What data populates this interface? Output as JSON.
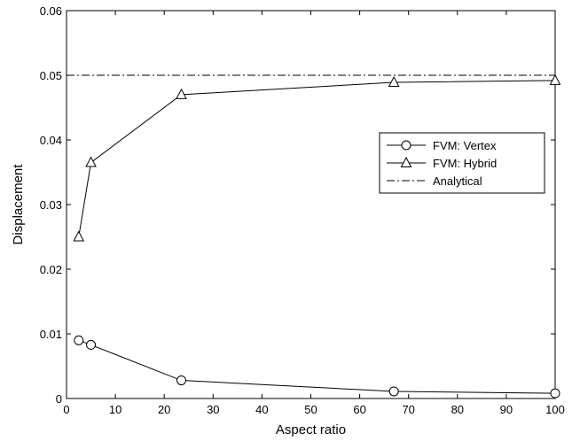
{
  "chart_data": {
    "type": "line",
    "xlabel": "Aspect ratio",
    "ylabel": "Displacement",
    "xlim": [
      0,
      100
    ],
    "ylim": [
      0,
      0.06
    ],
    "xticks": [
      "0",
      "10",
      "20",
      "30",
      "40",
      "50",
      "60",
      "70",
      "80",
      "90",
      "100"
    ],
    "yticks": [
      "0",
      "0.01",
      "0.02",
      "0.03",
      "0.04",
      "0.05",
      "0.06"
    ],
    "grid": false,
    "legend_position": "right-middle",
    "series": [
      {
        "name": "FVM: Vertex",
        "marker": "circle",
        "line": "solid",
        "color": "#000000",
        "x": [
          2.5,
          5,
          23.5,
          67,
          100
        ],
        "y": [
          0.009,
          0.0083,
          0.0028,
          0.0011,
          0.0008
        ]
      },
      {
        "name": "FVM: Hybrid",
        "marker": "triangle",
        "line": "solid",
        "color": "#000000",
        "x": [
          2.5,
          5,
          23.5,
          67,
          100
        ],
        "y": [
          0.025,
          0.0365,
          0.047,
          0.0489,
          0.0492
        ]
      },
      {
        "name": "Analytical",
        "marker": "none",
        "line": "dash-dot",
        "color": "#000000",
        "x": [
          0,
          100
        ],
        "y": [
          0.05,
          0.05
        ]
      }
    ]
  }
}
